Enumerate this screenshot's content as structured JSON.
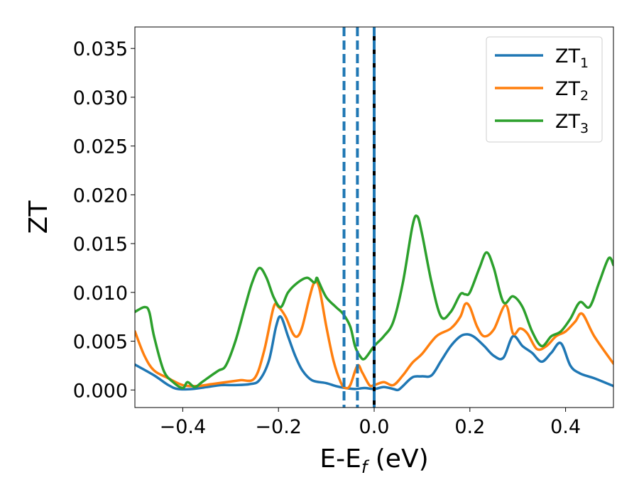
{
  "chart_data": {
    "type": "line",
    "title": "",
    "xlabel": "E-E",
    "xlabel_sub": "f",
    "xlabel_unit": " (eV)",
    "ylabel": "ZT",
    "xlim": [
      -0.5,
      0.5
    ],
    "ylim": [
      -0.0018,
      0.0372
    ],
    "xticks": [
      -0.4,
      -0.2,
      0.0,
      0.2,
      0.4
    ],
    "xtick_labels": [
      "−0.4",
      "−0.2",
      "0.0",
      "0.2",
      "0.4"
    ],
    "yticks": [
      0.0,
      0.005,
      0.01,
      0.015,
      0.02,
      0.025,
      0.03,
      0.035
    ],
    "ytick_labels": [
      "0.000",
      "0.005",
      "0.010",
      "0.015",
      "0.020",
      "0.025",
      "0.030",
      "0.035"
    ],
    "grid": false,
    "legend_position": "top-right",
    "vlines": [
      {
        "x": -0.063,
        "style": "dashed",
        "color": "#1f77b4"
      },
      {
        "x": -0.035,
        "style": "dashed",
        "color": "#1f77b4"
      },
      {
        "x": 0.0,
        "style": "solid",
        "color": "#000000"
      },
      {
        "x": 0.0,
        "style": "dashed",
        "color": "#1f77b4"
      }
    ],
    "series": [
      {
        "name": "ZT",
        "name_sub": "1",
        "color": "#1f77b4",
        "x": [
          -0.5,
          -0.46,
          -0.43,
          -0.41,
          -0.38,
          -0.35,
          -0.32,
          -0.29,
          -0.26,
          -0.24,
          -0.22,
          -0.205,
          -0.195,
          -0.18,
          -0.165,
          -0.15,
          -0.13,
          -0.1,
          -0.08,
          -0.06,
          -0.04,
          -0.02,
          0.0,
          0.02,
          0.04,
          0.05,
          0.06,
          0.08,
          0.1,
          0.12,
          0.14,
          0.16,
          0.18,
          0.195,
          0.21,
          0.23,
          0.25,
          0.27,
          0.29,
          0.31,
          0.33,
          0.35,
          0.37,
          0.39,
          0.41,
          0.43,
          0.46,
          0.5
        ],
        "y": [
          0.0026,
          0.0015,
          0.0005,
          0.0001,
          0.0001,
          0.0003,
          0.0005,
          0.0005,
          0.0006,
          0.001,
          0.003,
          0.0065,
          0.0075,
          0.0055,
          0.0035,
          0.002,
          0.001,
          0.0007,
          0.0004,
          0.0002,
          0.0001,
          0.0002,
          0.0001,
          0.0003,
          0.0001,
          0.0,
          0.0004,
          0.0013,
          0.0014,
          0.0015,
          0.003,
          0.0045,
          0.0055,
          0.0057,
          0.0054,
          0.0045,
          0.0035,
          0.0033,
          0.0055,
          0.0045,
          0.0038,
          0.0029,
          0.0038,
          0.0048,
          0.0025,
          0.0017,
          0.0012,
          0.0004
        ]
      },
      {
        "name": "ZT",
        "name_sub": "2",
        "color": "#ff7f0e",
        "x": [
          -0.5,
          -0.48,
          -0.46,
          -0.43,
          -0.4,
          -0.37,
          -0.34,
          -0.31,
          -0.28,
          -0.25,
          -0.23,
          -0.21,
          -0.2,
          -0.185,
          -0.17,
          -0.16,
          -0.15,
          -0.135,
          -0.125,
          -0.115,
          -0.1,
          -0.085,
          -0.07,
          -0.06,
          -0.05,
          -0.035,
          -0.025,
          -0.01,
          0.0,
          0.02,
          0.04,
          0.06,
          0.08,
          0.1,
          0.13,
          0.16,
          0.18,
          0.19,
          0.2,
          0.215,
          0.23,
          0.25,
          0.275,
          0.29,
          0.305,
          0.32,
          0.34,
          0.36,
          0.38,
          0.4,
          0.42,
          0.435,
          0.46,
          0.5
        ],
        "y": [
          0.006,
          0.0035,
          0.002,
          0.0012,
          0.0005,
          0.0004,
          0.0006,
          0.0008,
          0.001,
          0.0012,
          0.004,
          0.0085,
          0.0085,
          0.0075,
          0.0058,
          0.0055,
          0.0065,
          0.0095,
          0.011,
          0.0105,
          0.0065,
          0.003,
          0.0008,
          0.0002,
          0.0005,
          0.0025,
          0.0018,
          0.0005,
          0.0005,
          0.0008,
          0.0005,
          0.0015,
          0.0028,
          0.0037,
          0.0055,
          0.0063,
          0.0075,
          0.0088,
          0.0085,
          0.0065,
          0.0055,
          0.0062,
          0.0087,
          0.0058,
          0.0063,
          0.0058,
          0.0042,
          0.0045,
          0.0055,
          0.006,
          0.007,
          0.0078,
          0.0055,
          0.0027
        ]
      },
      {
        "name": "ZT",
        "name_sub": "3",
        "color": "#2ca02c",
        "x": [
          -0.5,
          -0.48,
          -0.47,
          -0.46,
          -0.44,
          -0.42,
          -0.4,
          -0.39,
          -0.375,
          -0.36,
          -0.34,
          -0.325,
          -0.31,
          -0.29,
          -0.27,
          -0.255,
          -0.24,
          -0.225,
          -0.21,
          -0.195,
          -0.18,
          -0.16,
          -0.14,
          -0.125,
          -0.12,
          -0.115,
          -0.1,
          -0.08,
          -0.065,
          -0.05,
          -0.04,
          -0.03,
          -0.02,
          0.0,
          0.02,
          0.04,
          0.06,
          0.08,
          0.09,
          0.1,
          0.12,
          0.14,
          0.16,
          0.18,
          0.19,
          0.2,
          0.22,
          0.235,
          0.25,
          0.27,
          0.29,
          0.31,
          0.33,
          0.35,
          0.37,
          0.39,
          0.41,
          0.43,
          0.45,
          0.47,
          0.49,
          0.5
        ],
        "y": [
          0.008,
          0.0085,
          0.008,
          0.0055,
          0.002,
          0.0008,
          0.0002,
          0.0008,
          0.0003,
          0.0008,
          0.0015,
          0.002,
          0.0025,
          0.005,
          0.0085,
          0.011,
          0.0125,
          0.0115,
          0.0095,
          0.0085,
          0.01,
          0.011,
          0.0115,
          0.011,
          0.0115,
          0.011,
          0.0095,
          0.0085,
          0.0078,
          0.0065,
          0.0045,
          0.0035,
          0.0032,
          0.0045,
          0.0055,
          0.007,
          0.011,
          0.0168,
          0.0178,
          0.016,
          0.011,
          0.0075,
          0.008,
          0.0098,
          0.0098,
          0.01,
          0.0125,
          0.0141,
          0.0125,
          0.009,
          0.0096,
          0.0085,
          0.006,
          0.0045,
          0.0055,
          0.006,
          0.0073,
          0.009,
          0.0085,
          0.011,
          0.0135,
          0.0128
        ]
      }
    ]
  }
}
